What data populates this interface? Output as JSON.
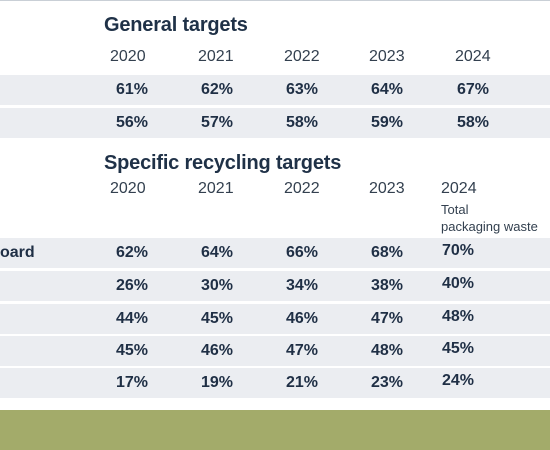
{
  "general": {
    "title": "General targets",
    "years": [
      "2020",
      "2021",
      "2022",
      "2023",
      "2024"
    ],
    "rows": [
      [
        "61%",
        "62%",
        "63%",
        "64%",
        "67%"
      ],
      [
        "56%",
        "57%",
        "58%",
        "59%",
        "58%"
      ]
    ]
  },
  "specific": {
    "title": "Specific recycling targets",
    "years": [
      "2020",
      "2021",
      "2022",
      "2023",
      "2024"
    ],
    "note_line1": "Total",
    "note_line2": "packaging waste",
    "rows": [
      {
        "label": "oard",
        "values": [
          "62%",
          "64%",
          "66%",
          "68%",
          "70%"
        ]
      },
      {
        "label": "",
        "values": [
          "26%",
          "30%",
          "34%",
          "38%",
          "40%"
        ]
      },
      {
        "label": "",
        "values": [
          "44%",
          "45%",
          "46%",
          "47%",
          "48%"
        ]
      },
      {
        "label": "",
        "values": [
          "45%",
          "46%",
          "47%",
          "48%",
          "45%"
        ]
      },
      {
        "label": "",
        "values": [
          "17%",
          "19%",
          "21%",
          "23%",
          "24%"
        ]
      }
    ]
  },
  "colors": {
    "row_band": "#ebedf1",
    "footer_bar": "#a3ab6a",
    "text_dark": "#1f2f45"
  }
}
